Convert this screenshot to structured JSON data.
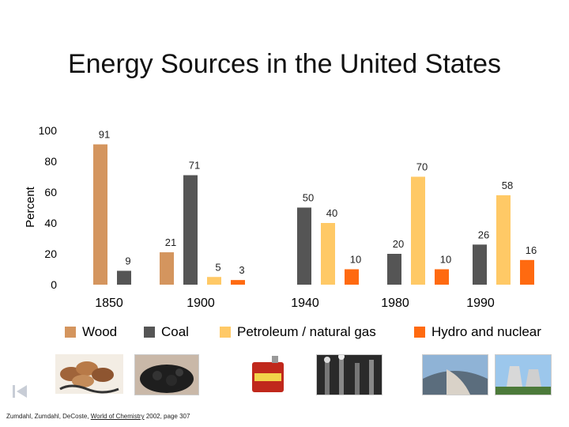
{
  "chart_data": {
    "type": "bar",
    "title": "Energy Sources in the United States",
    "ylabel": "Percent",
    "xlabel": "",
    "ylim": [
      0,
      100
    ],
    "yticks": [
      "0",
      "20",
      "40",
      "60",
      "80",
      "100"
    ],
    "categories": [
      "1850",
      "1900",
      "1940",
      "1980",
      "1990"
    ],
    "series": [
      {
        "name": "Wood",
        "color": "#d4955e",
        "values": [
          91,
          21,
          null,
          null,
          null
        ]
      },
      {
        "name": "Coal",
        "color": "#555555",
        "values": [
          9,
          71,
          50,
          20,
          26
        ]
      },
      {
        "name": "Petroleum / natural gas",
        "color": "#ffc966",
        "values": [
          null,
          5,
          40,
          70,
          58
        ]
      },
      {
        "name": "Hydro and nuclear",
        "color": "#ff6a10",
        "values": [
          null,
          3,
          10,
          10,
          16
        ]
      }
    ]
  },
  "citation": {
    "prefix": "Zumdahl, Zumdahl, DeCoste, ",
    "book": "World of Chemistry",
    "suffix": "  2002, page 307"
  },
  "images": {
    "wood": "firewood photo",
    "coal": "coal photo",
    "gasoline": "gasoline can photo",
    "smokestacks": "smokestacks photo",
    "dam": "dam photo",
    "nuclear": "nuclear plant photo"
  },
  "nav": {
    "icon": "skip-back-icon"
  }
}
